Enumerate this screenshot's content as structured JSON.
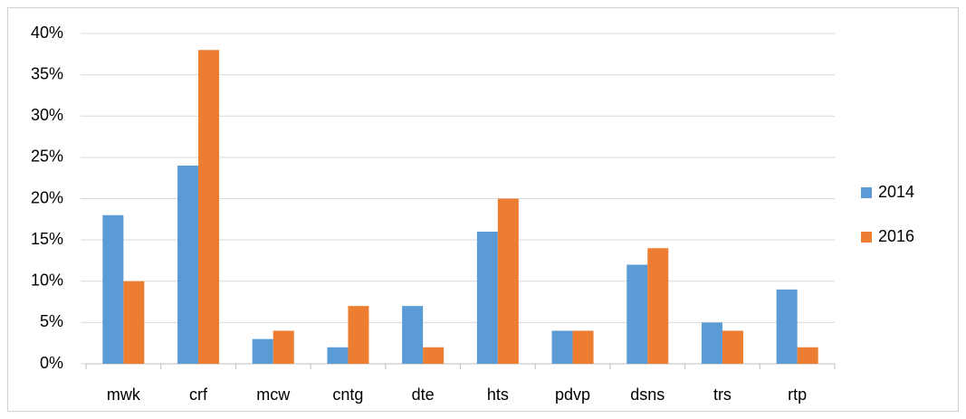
{
  "chart_data": {
    "type": "bar",
    "categories": [
      "mwk",
      "crf",
      "mcw",
      "cntg",
      "dte",
      "hts",
      "pdvp",
      "dsns",
      "trs",
      "rtp"
    ],
    "series": [
      {
        "name": "2014",
        "color": "#5b9bd5",
        "values": [
          18,
          24,
          3,
          2,
          7,
          16,
          4,
          12,
          5,
          9
        ]
      },
      {
        "name": "2016",
        "color": "#ed7d31",
        "values": [
          10,
          38,
          4,
          7,
          2,
          20,
          4,
          14,
          4,
          2
        ]
      }
    ],
    "ylim": [
      0,
      40
    ],
    "yticks": [
      {
        "value": 0,
        "label": "0%"
      },
      {
        "value": 5,
        "label": "5%"
      },
      {
        "value": 10,
        "label": "10%"
      },
      {
        "value": 15,
        "label": "15%"
      },
      {
        "value": 20,
        "label": "20%"
      },
      {
        "value": 25,
        "label": "25%"
      },
      {
        "value": 30,
        "label": "30%"
      },
      {
        "value": 35,
        "label": "35%"
      },
      {
        "value": 40,
        "label": "40%"
      }
    ],
    "grid": true,
    "legend": "right"
  }
}
